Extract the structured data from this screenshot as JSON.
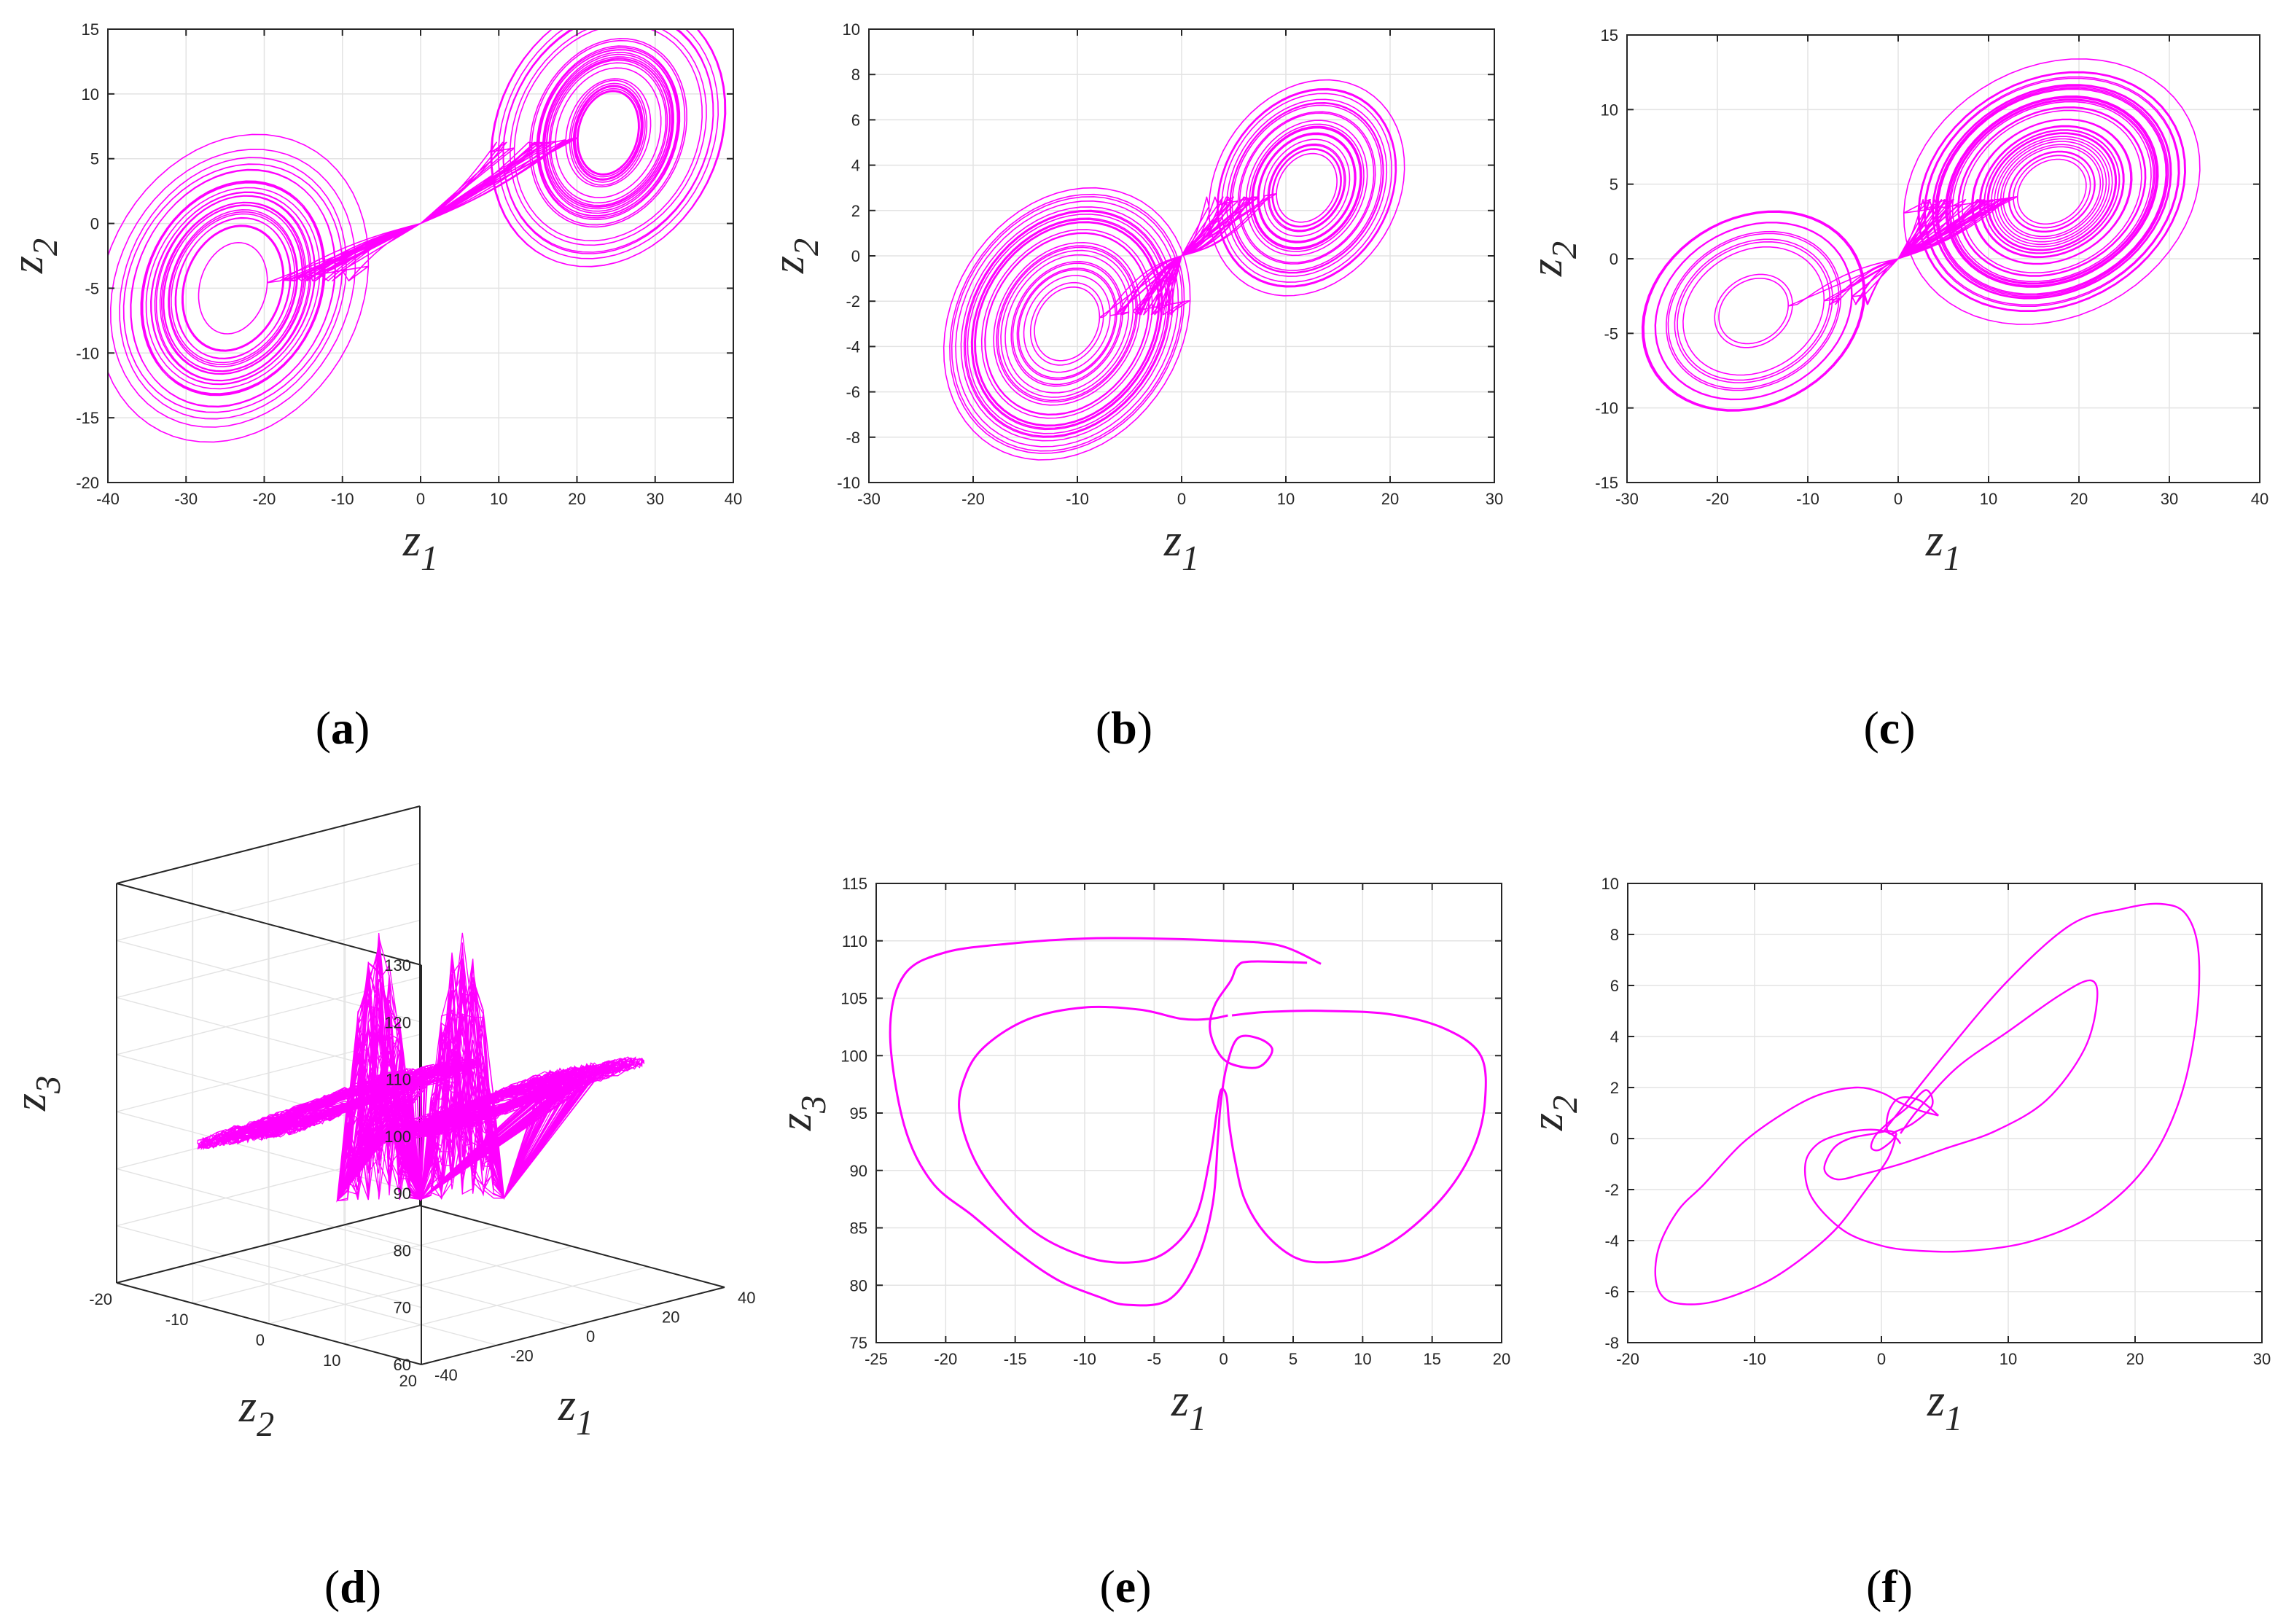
{
  "colors": {
    "trajectory": "#ff00ff",
    "grid": "#e3e3e3",
    "axis": "#262626"
  },
  "chart_data": [
    {
      "id": "a",
      "panel_label": "a",
      "type": "line",
      "kind": "attractor2d",
      "xlabel": "z",
      "xlabel_sub": "1",
      "ylabel": "z",
      "ylabel_sub": "2",
      "xlim": [
        -40,
        40
      ],
      "ylim": [
        -20,
        15
      ],
      "xticks": [
        -40,
        -30,
        -20,
        -10,
        0,
        10,
        20,
        30,
        40
      ],
      "yticks": [
        -20,
        -15,
        -10,
        -5,
        0,
        5,
        10,
        15
      ],
      "grid": true,
      "series": [
        {
          "shape": "butterfly-spiral",
          "center1": [
            -24,
            -5
          ],
          "center2": [
            24,
            7
          ],
          "radius_x": [
            2,
            14
          ],
          "radius_y": [
            2,
            9.5
          ],
          "turns": 26,
          "tilt": 0.28
        }
      ]
    },
    {
      "id": "b",
      "panel_label": "b",
      "type": "line",
      "kind": "attractor2d",
      "xlabel": "z",
      "xlabel_sub": "1",
      "ylabel": "z",
      "ylabel_sub": "2",
      "xlim": [
        -30,
        30
      ],
      "ylim": [
        -10,
        10
      ],
      "xticks": [
        -30,
        -20,
        -10,
        0,
        10,
        20,
        30
      ],
      "yticks": [
        -10,
        -8,
        -6,
        -4,
        -2,
        0,
        2,
        4,
        6,
        8,
        10
      ],
      "grid": true,
      "series": [
        {
          "shape": "butterfly-spiral",
          "center1": [
            -11,
            -3
          ],
          "center2": [
            12,
            3
          ],
          "radius_x": [
            1.5,
            10
          ],
          "radius_y": [
            0.8,
            5
          ],
          "turns": 28,
          "tilt": 0.25
        }
      ]
    },
    {
      "id": "c",
      "panel_label": "c",
      "type": "line",
      "kind": "attractor2d",
      "xlabel": "z",
      "xlabel_sub": "1",
      "ylabel": "z",
      "ylabel_sub": "2",
      "xlim": [
        -30,
        40
      ],
      "ylim": [
        -15,
        15
      ],
      "xticks": [
        -30,
        -20,
        -10,
        0,
        10,
        20,
        30,
        40
      ],
      "yticks": [
        -15,
        -10,
        -5,
        0,
        5,
        10,
        15
      ],
      "grid": true,
      "series": [
        {
          "shape": "butterfly-spiral",
          "center1": [
            -16,
            -3.5
          ],
          "center2": [
            17,
            4.5
          ],
          "radius_x": [
            2,
            14
          ],
          "radius_y": [
            1.2,
            7.5
          ],
          "turns": 28,
          "tilt": 0.25
        }
      ]
    },
    {
      "id": "d",
      "panel_label": "d",
      "type": "line",
      "kind": "attractor3d",
      "xlabel": "z",
      "xlabel_sub": "1",
      "ylabel": "z",
      "ylabel_sub": "2",
      "zlabel": "z",
      "zlabel_sub": "3",
      "xlim": [
        -40,
        40
      ],
      "ylim": [
        -20,
        20
      ],
      "zlim": [
        60,
        130
      ],
      "xticks": [
        -40,
        -20,
        0,
        20,
        40
      ],
      "yticks": [
        -20,
        -10,
        0,
        10,
        20
      ],
      "zticks": [
        60,
        70,
        80,
        90,
        100,
        110,
        120,
        130
      ],
      "grid": true,
      "series": [
        {
          "shape": "butterfly-3d",
          "lobes_center_z": 92,
          "bottom_z": 75,
          "top_z": 122
        }
      ]
    },
    {
      "id": "e",
      "panel_label": "e",
      "type": "line",
      "kind": "periodic",
      "xlabel": "z",
      "xlabel_sub": "1",
      "ylabel": "z",
      "ylabel_sub": "3",
      "xlim": [
        -25,
        20
      ],
      "ylim": [
        75,
        115
      ],
      "xticks": [
        -25,
        -20,
        -15,
        -10,
        -5,
        0,
        5,
        10,
        15,
        20
      ],
      "yticks": [
        75,
        80,
        85,
        90,
        95,
        100,
        105,
        110,
        115
      ],
      "grid": true,
      "series": [
        {
          "name": "",
          "x": [
            7,
            4,
            0,
            -5,
            -10,
            -15,
            -20,
            -23,
            -24,
            -23,
            -21,
            -18,
            -15,
            -12,
            -9,
            -7,
            -4,
            -2,
            -0.8,
            -0.4,
            -0.2,
            0.2,
            1,
            2.5,
            3.5,
            2.5,
            0.5,
            -0.5,
            -1,
            -0.6,
            0.5,
            1,
            2,
            6
          ],
          "y": [
            108,
            109.6,
            110,
            110.2,
            110.2,
            109.8,
            109,
            107,
            102,
            94,
            89,
            86,
            83,
            80.5,
            79,
            78.3,
            78.7,
            82,
            87,
            93,
            96,
            99,
            101.5,
            101.5,
            100.5,
            99,
            99.3,
            100.5,
            102.5,
            104.5,
            106.5,
            107.8,
            108.2,
            108.1
          ]
        },
        {
          "name": "",
          "x": [
            0.6,
            3,
            7,
            12,
            16,
            18.5,
            18.8,
            18,
            16,
            13,
            10,
            7,
            5,
            3,
            1.5,
            0.8,
            0.4,
            0.2,
            -0.2,
            -0.5,
            -1,
            -2,
            -4,
            -6.5,
            -10,
            -14,
            -17.5,
            -19,
            -18.5,
            -17,
            -14,
            -10,
            -6,
            -3,
            -1,
            0.3
          ],
          "y": [
            103.5,
            103.8,
            103.9,
            103.6,
            102.3,
            100,
            96,
            92,
            88,
            84.5,
            82.5,
            82,
            82.5,
            84.5,
            87.5,
            91,
            94,
            96.5,
            97,
            95,
            91,
            86,
            83,
            82,
            82.5,
            85,
            90,
            95,
            98.5,
            101,
            103.2,
            104.2,
            104,
            103.2,
            103.2,
            103.5
          ]
        }
      ]
    },
    {
      "id": "f",
      "panel_label": "f",
      "type": "line",
      "kind": "periodic",
      "xlabel": "z",
      "xlabel_sub": "1",
      "ylabel": "z",
      "ylabel_sub": "2",
      "xlim": [
        -20,
        30
      ],
      "ylim": [
        -8,
        10
      ],
      "xticks": [
        -20,
        -10,
        0,
        10,
        20,
        30
      ],
      "yticks": [
        -8,
        -6,
        -4,
        -2,
        0,
        2,
        4,
        6,
        8,
        10
      ],
      "grid": true,
      "series": [
        {
          "name": "",
          "x": [
            0.2,
            5,
            10,
            15,
            19,
            22,
            24,
            25,
            24.8,
            23.5,
            21,
            17,
            12,
            7,
            3,
            0,
            -3,
            -5.5,
            -6,
            -5,
            -3,
            -1,
            0.5,
            1.2,
            1.5
          ],
          "y": [
            0.3,
            3.3,
            6.2,
            8.4,
            9.0,
            9.2,
            8.8,
            7.3,
            4.5,
            1.5,
            -1,
            -2.9,
            -4,
            -4.4,
            -4.4,
            -4.2,
            -3.6,
            -2.3,
            -1,
            -0.2,
            0.2,
            0.35,
            0.25,
            0.0,
            -0.2
          ]
        },
        {
          "name": "",
          "x": [
            1.5,
            3,
            6,
            10,
            14,
            16.5,
            17,
            16,
            13,
            9,
            5,
            1.5,
            -1.5,
            -3.5,
            -4.5,
            -3.8,
            -2.5,
            -0.5,
            0.5,
            1
          ],
          "y": [
            0.2,
            1.2,
            2.8,
            4.2,
            5.6,
            6.2,
            5.4,
            3.5,
            1.5,
            0.3,
            -0.4,
            -1,
            -1.4,
            -1.6,
            -1.2,
            -0.4,
            0,
            0.2,
            0.3,
            0.25
          ]
        },
        {
          "name": "",
          "x": [
            1,
            2.5,
            4,
            3.5,
            2,
            0.5,
            -0.5,
            -0.8,
            -0.2,
            0.8,
            1.2
          ],
          "y": [
            0.25,
            0.6,
            1.3,
            1.9,
            1.2,
            0.6,
            0.1,
            -0.35,
            -0.45,
            -0.1,
            0.2
          ]
        },
        {
          "name": "",
          "x": [
            1.2,
            0.5,
            -1.5,
            -3.5,
            -6,
            -9,
            -12.5,
            -15,
            -17,
            -17.8,
            -17.5,
            -16,
            -14,
            -11,
            -8,
            -5,
            -2,
            0,
            1.5,
            3,
            4.5
          ],
          "y": [
            0.2,
            -0.8,
            -2.2,
            -3.5,
            -4.6,
            -5.6,
            -6.3,
            -6.5,
            -6.3,
            -5.5,
            -4.2,
            -2.8,
            -1.8,
            -0.2,
            0.9,
            1.7,
            2.0,
            1.8,
            1.4,
            1.1,
            0.9
          ]
        },
        {
          "name": "",
          "x": [
            4.5,
            3,
            1.5,
            0.7,
            0.4,
            0.6,
            1.2
          ],
          "y": [
            0.9,
            1.5,
            1.6,
            1.2,
            0.6,
            0.2,
            0.25
          ]
        }
      ]
    }
  ]
}
